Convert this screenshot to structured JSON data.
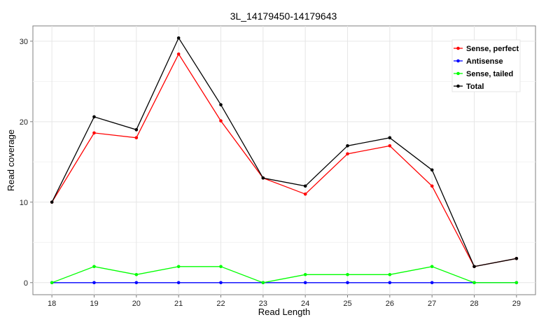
{
  "chart_data": {
    "type": "line",
    "title": "3L_14179450-14179643",
    "xlabel": "Read Length",
    "ylabel": "Read coverage",
    "x": [
      18,
      19,
      20,
      21,
      22,
      23,
      24,
      25,
      26,
      27,
      28,
      29
    ],
    "xlim": [
      17.55,
      29.45
    ],
    "ylim": [
      -1.5,
      31.9
    ],
    "yticks": [
      0,
      10,
      20,
      30
    ],
    "grid": true,
    "legend_position": "top-right",
    "series": [
      {
        "name": "Sense, perfect",
        "color": "#ff0000",
        "values": [
          10,
          18.6,
          18,
          28.4,
          20.1,
          13,
          11,
          16,
          17,
          12,
          2,
          3
        ]
      },
      {
        "name": "Antisense",
        "color": "#0000ff",
        "values": [
          0,
          0,
          0,
          0,
          0,
          0,
          0,
          0,
          0,
          0,
          0,
          0
        ]
      },
      {
        "name": "Sense, tailed",
        "color": "#00ff00",
        "values": [
          0,
          2,
          1,
          2,
          2,
          0,
          1,
          1,
          1,
          2,
          0,
          0
        ]
      },
      {
        "name": "Total",
        "color": "#000000",
        "values": [
          10,
          20.6,
          19,
          30.4,
          22.1,
          13,
          12,
          17,
          18,
          14,
          2,
          3
        ]
      }
    ]
  }
}
